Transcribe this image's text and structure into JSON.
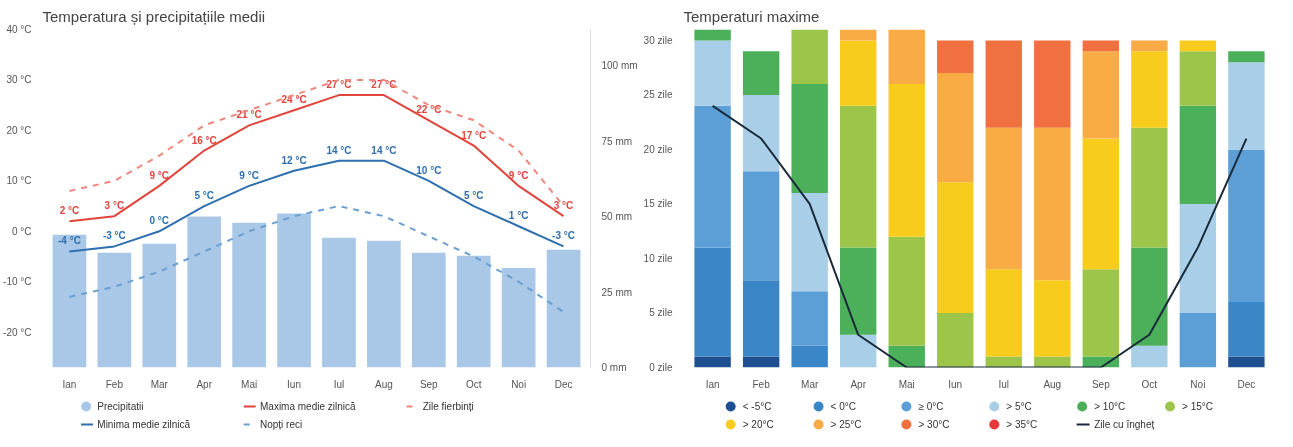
{
  "chart_data": [
    {
      "type": "bar",
      "title": "Temperatura și precipitațiile medii",
      "categories": [
        "Ian",
        "Feb",
        "Mar",
        "Apr",
        "Mai",
        "Iun",
        "Iul",
        "Aug",
        "Sep",
        "Oct",
        "Noi",
        "Dec"
      ],
      "series": [
        {
          "name": "Precipitatii",
          "type": "bar",
          "axis": "y2",
          "color": "#a9c8e8",
          "values": [
            44,
            38,
            41,
            50,
            48,
            51,
            43,
            42,
            38,
            37,
            33,
            39
          ]
        },
        {
          "name": "Maxima medie zilnică",
          "type": "line",
          "line_style": "solid",
          "color": "#e0453c",
          "values": [
            2,
            3,
            9,
            16,
            21,
            24,
            27,
            27,
            22,
            17,
            9,
            3
          ],
          "value_labels": [
            "2 °C",
            "3 °C",
            "9 °C",
            "16 °C",
            "21 °C",
            "24 °C",
            "27 °C",
            "27 °C",
            "22 °C",
            "17 °C",
            "9 °C",
            "3 °C"
          ]
        },
        {
          "name": "Zile fierbinți",
          "type": "line",
          "line_style": "dashed",
          "color": "#f0877c",
          "values": [
            8,
            10,
            15,
            21,
            24,
            27,
            30,
            30,
            25,
            22,
            16,
            5
          ]
        },
        {
          "name": "Minima medie zilnică",
          "type": "line",
          "line_style": "solid",
          "color": "#2e6fb0",
          "values": [
            -4,
            -3,
            0,
            5,
            9,
            12,
            14,
            14,
            10,
            5,
            1,
            -3
          ],
          "value_labels": [
            "-4 °C",
            "-3 °C",
            "0 °C",
            "5 °C",
            "9 °C",
            "12 °C",
            "14 °C",
            "14 °C",
            "10 °C",
            "5 °C",
            "1 °C",
            "-3 °C"
          ]
        },
        {
          "name": "Nopți reci",
          "type": "line",
          "line_style": "dashed",
          "color": "#6a9fd0",
          "values": [
            -13,
            -11,
            -8,
            -4,
            0,
            3,
            5,
            3,
            -1,
            -5,
            -10,
            -16
          ]
        }
      ],
      "ylim": [
        -27,
        40
      ],
      "yticks": [
        {
          "value": -20,
          "label": "-20 °C"
        },
        {
          "value": -10,
          "label": "-10 °C"
        },
        {
          "value": 0,
          "label": "0 °C"
        },
        {
          "value": 10,
          "label": "10 °C"
        },
        {
          "value": 20,
          "label": "20 °C"
        },
        {
          "value": 30,
          "label": "30 °C"
        },
        {
          "value": 40,
          "label": "40 °C"
        }
      ],
      "y2lim": [
        0,
        112
      ],
      "y2ticks": [
        {
          "value": 0,
          "label": "0 mm"
        },
        {
          "value": 25,
          "label": "25 mm"
        },
        {
          "value": 50,
          "label": "50 mm"
        },
        {
          "value": 75,
          "label": "75 mm"
        },
        {
          "value": 100,
          "label": "100 mm"
        }
      ],
      "grid": false,
      "legend": "bottom"
    },
    {
      "type": "bar",
      "title": "Temperaturi maxime",
      "stacked": true,
      "categories": [
        "Ian",
        "Feb",
        "Mar",
        "Apr",
        "Mai",
        "Iun",
        "Iul",
        "Aug",
        "Sep",
        "Oct",
        "Noi",
        "Dec"
      ],
      "series": [
        {
          "name": "< -5°C",
          "color": "#1d4f91",
          "values": [
            1,
            1,
            0,
            0,
            0,
            0,
            0,
            0,
            0,
            0,
            0,
            1
          ]
        },
        {
          "name": "< 0°C",
          "color": "#3b86c6",
          "values": [
            10,
            7,
            2,
            0,
            0,
            0,
            0,
            0,
            0,
            0,
            0,
            5
          ]
        },
        {
          "name": "≥ 0°C",
          "color": "#5b9fd6",
          "values": [
            13,
            10,
            5,
            0,
            0,
            0,
            0,
            0,
            0,
            0,
            5,
            14
          ]
        },
        {
          "name": "> 5°C",
          "color": "#a9cfe8",
          "values": [
            6,
            7,
            9,
            3,
            0,
            0,
            0,
            0,
            0,
            2,
            10,
            8
          ]
        },
        {
          "name": "> 10°C",
          "color": "#4caf5a",
          "values": [
            1,
            4,
            10,
            8,
            2,
            0,
            0,
            0,
            1,
            9,
            9,
            1
          ]
        },
        {
          "name": "> 15°C",
          "color": "#9cc54a",
          "values": [
            0,
            0,
            5,
            13,
            10,
            5,
            1,
            1,
            8,
            11,
            5,
            0
          ]
        },
        {
          "name": "> 20°C",
          "color": "#f7cc1c",
          "values": [
            0,
            0,
            0,
            6,
            14,
            12,
            8,
            7,
            12,
            7,
            1,
            0
          ]
        },
        {
          "name": "> 25°C",
          "color": "#f9ac45",
          "values": [
            0,
            0,
            0,
            1,
            5,
            10,
            13,
            14,
            8,
            1,
            0,
            0
          ]
        },
        {
          "name": "> 30°C",
          "color": "#f0703f",
          "values": [
            0,
            0,
            0,
            0,
            0,
            3,
            8,
            8,
            1,
            0,
            0,
            0
          ]
        },
        {
          "name": "> 35°C",
          "color": "#e8383a",
          "values": [
            0,
            0,
            0,
            0,
            0,
            0,
            0,
            0,
            0,
            0,
            0,
            0
          ]
        },
        {
          "name": "Zile cu îngheț",
          "type": "line",
          "line_style": "solid",
          "color": "#1a2a3a",
          "values": [
            24,
            21,
            15,
            3,
            0,
            0,
            0,
            0,
            0,
            3,
            11,
            21
          ]
        }
      ],
      "ylim": [
        0,
        31
      ],
      "yticks": [
        {
          "value": 0,
          "label": "0 zile"
        },
        {
          "value": 5,
          "label": "5 zile"
        },
        {
          "value": 10,
          "label": "10 zile"
        },
        {
          "value": 15,
          "label": "15 zile"
        },
        {
          "value": 20,
          "label": "20 zile"
        },
        {
          "value": 25,
          "label": "25 zile"
        },
        {
          "value": 30,
          "label": "30 zile"
        }
      ],
      "grid": false,
      "legend": "bottom"
    }
  ]
}
